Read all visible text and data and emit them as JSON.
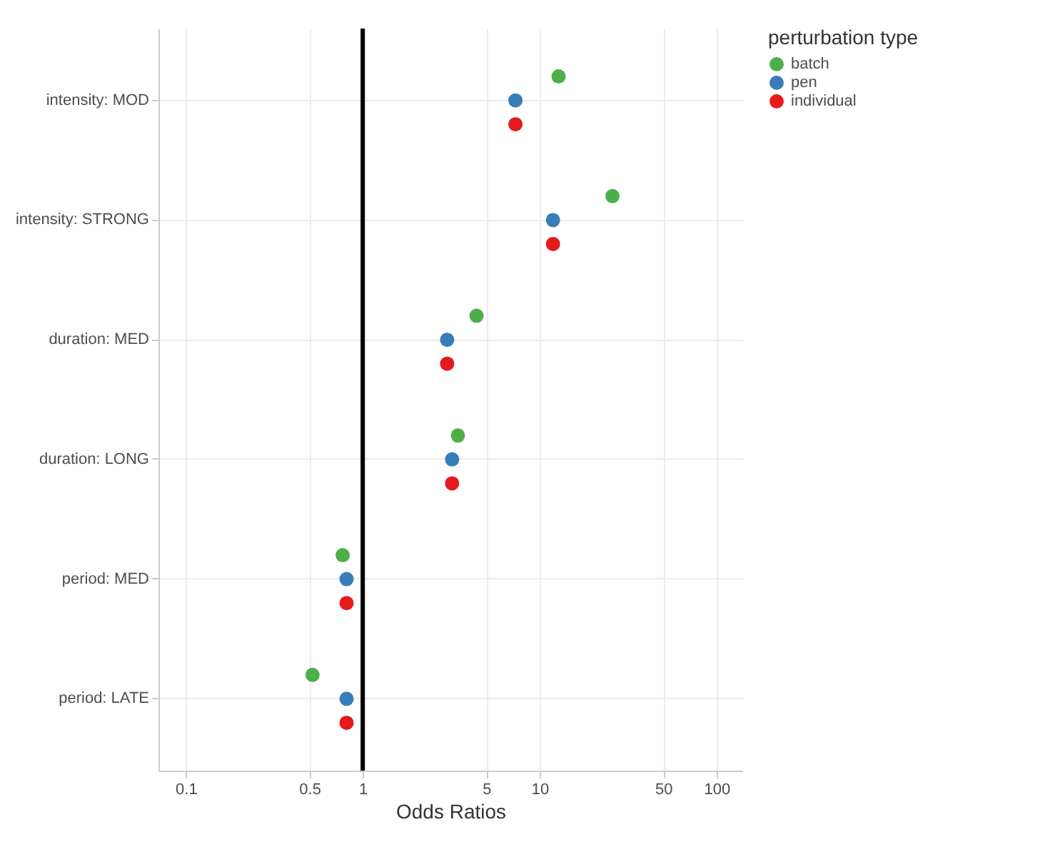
{
  "chart_data": {
    "type": "scatter",
    "orientation": "horizontal",
    "log": "x",
    "xlabel": "Odds Ratios",
    "legend_title": "perturbation type",
    "legend": "right",
    "grid": true,
    "marker": "circle",
    "categories": [
      "intensity: MOD",
      "intensity: STRONG",
      "duration: MED",
      "duration: LONG",
      "period: MED",
      "period: LATE"
    ],
    "xlim": [
      0.07,
      140
    ],
    "xticks": [
      0.1,
      0.5,
      1,
      5,
      10,
      50,
      100
    ],
    "ref_lines": [
      {
        "axis": "x",
        "value": 1,
        "color": "#000000"
      }
    ],
    "series": [
      {
        "name": "batch",
        "color": "#4daf4a",
        "values": [
          12.8,
          25.8,
          4.4,
          3.45,
          0.77,
          0.52
        ]
      },
      {
        "name": "pen",
        "color": "#377eb8",
        "values": [
          7.3,
          11.9,
          3.0,
          3.2,
          0.81,
          0.81
        ]
      },
      {
        "name": "individual",
        "color": "#e41a1c",
        "values": [
          7.3,
          11.9,
          3.0,
          3.2,
          0.81,
          0.81
        ]
      }
    ]
  }
}
